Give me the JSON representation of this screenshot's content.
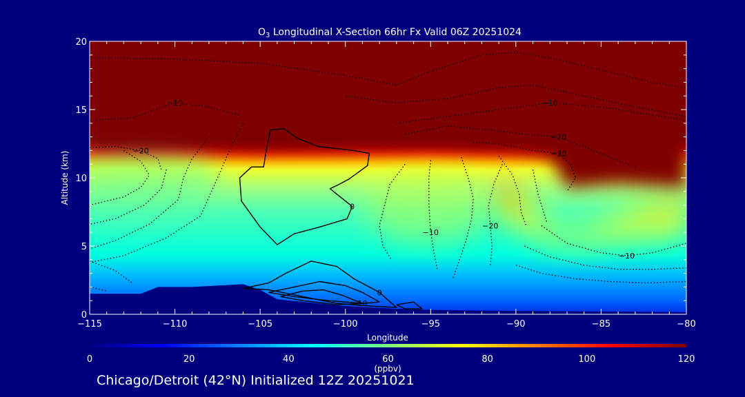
{
  "chart_data": {
    "type": "heatmap",
    "title": {
      "base": "O",
      "sub": "3",
      "rest": " Longitudinal X-Section 66hr  Fx Valid 06Z 20251024"
    },
    "xlabel": "Longitude",
    "ylabel": "Altitude (km)",
    "xlim": [
      -115,
      -80
    ],
    "ylim": [
      0,
      20
    ],
    "x_ticks": [
      -115,
      -110,
      -105,
      -100,
      -95,
      -90,
      -85,
      -80
    ],
    "x_tick_labels": [
      "−115",
      "−110",
      "−105",
      "−100",
      "−95",
      "−90",
      "−85",
      "−80"
    ],
    "y_ticks": [
      0,
      5,
      10,
      15,
      20
    ],
    "y_tick_labels": [
      "0",
      "5",
      "10",
      "15",
      "20"
    ],
    "colorbar": {
      "label": "(ppbv)",
      "min": 0,
      "max": 120,
      "ticks": [
        0,
        20,
        40,
        60,
        80,
        100,
        120
      ],
      "tick_labels": [
        "0",
        "20",
        "40",
        "60",
        "80",
        "100",
        "120"
      ],
      "colors": [
        "#00007f",
        "#0000ff",
        "#007fff",
        "#00ffff",
        "#7fff7f",
        "#ffff00",
        "#ff7f00",
        "#ff0000",
        "#7f0000"
      ]
    },
    "tropopause": [
      {
        "lon": -115,
        "alt": 12.2
      },
      {
        "lon": -110,
        "alt": 12.2
      },
      {
        "lon": -105,
        "alt": 12.0
      },
      {
        "lon": -100,
        "alt": 12.1
      },
      {
        "lon": -95,
        "alt": 12.2
      },
      {
        "lon": -90,
        "alt": 11.9
      },
      {
        "lon": -88,
        "alt": 11.6
      },
      {
        "lon": -87,
        "alt": 9.3
      },
      {
        "lon": -84,
        "alt": 9.6
      },
      {
        "lon": -80,
        "alt": 9.3
      }
    ],
    "terrain": [
      {
        "lon": -115,
        "alt": 1.5
      },
      {
        "lon": -112,
        "alt": 1.5
      },
      {
        "lon": -111,
        "alt": 2.0
      },
      {
        "lon": -109,
        "alt": 2.0
      },
      {
        "lon": -106,
        "alt": 2.2
      },
      {
        "lon": -105,
        "alt": 1.8
      },
      {
        "lon": -104,
        "alt": 1.1
      },
      {
        "lon": -100,
        "alt": 0.6
      },
      {
        "lon": -97,
        "alt": 0.4
      },
      {
        "lon": -94,
        "alt": 0.3
      },
      {
        "lon": -90,
        "alt": 0.25
      },
      {
        "lon": -85,
        "alt": 0.2
      },
      {
        "lon": -80,
        "alt": 0.15
      }
    ],
    "solid_contours": [
      {
        "label": "0",
        "points": [
          [
            -104.4,
            13.5
          ],
          [
            -103.6,
            13.6
          ],
          [
            -102.8,
            12.9
          ],
          [
            -101.6,
            12.3
          ],
          [
            -99.5,
            12.0
          ],
          [
            -98.6,
            11.8
          ],
          [
            -98.7,
            10.9
          ],
          [
            -99.8,
            9.9
          ],
          [
            -100.4,
            9.5
          ],
          [
            -100.9,
            9.2
          ],
          [
            -100.3,
            8.6
          ],
          [
            -99.6,
            7.9
          ],
          [
            -99.9,
            7.0
          ],
          [
            -101.5,
            6.4
          ],
          [
            -103.0,
            5.9
          ],
          [
            -104.0,
            5.1
          ],
          [
            -105.0,
            6.4
          ],
          [
            -106.1,
            8.3
          ],
          [
            -106.2,
            10.0
          ],
          [
            -105.5,
            10.8
          ],
          [
            -104.8,
            10.8
          ],
          [
            -104.6,
            12.3
          ],
          [
            -104.4,
            13.5
          ]
        ]
      },
      {
        "label": "0",
        "points": [
          [
            -106.0,
            1.9
          ],
          [
            -104.5,
            2.3
          ],
          [
            -103.5,
            3.0
          ],
          [
            -102.0,
            3.9
          ],
          [
            -100.5,
            3.5
          ],
          [
            -99.5,
            2.6
          ],
          [
            -98.0,
            1.6
          ],
          [
            -97.0,
            0.5
          ],
          [
            -98.5,
            0.6
          ],
          [
            -100.5,
            0.8
          ],
          [
            -102.5,
            1.3
          ],
          [
            -104.5,
            1.8
          ],
          [
            -106.0,
            1.9
          ]
        ]
      },
      {
        "label": "",
        "points": [
          [
            -104.5,
            1.6
          ],
          [
            -103.0,
            2.0
          ],
          [
            -101.5,
            2.4
          ],
          [
            -100.0,
            2.1
          ],
          [
            -99.0,
            1.6
          ],
          [
            -98.0,
            0.9
          ],
          [
            -99.0,
            0.8
          ],
          [
            -101.0,
            1.0
          ],
          [
            -103.0,
            1.3
          ],
          [
            -104.5,
            1.6
          ]
        ]
      },
      {
        "label": "10",
        "points": [
          [
            -103.8,
            1.3
          ],
          [
            -102.5,
            1.7
          ],
          [
            -101.3,
            1.8
          ],
          [
            -100.2,
            1.4
          ],
          [
            -99.0,
            0.8
          ],
          [
            -100.5,
            0.7
          ],
          [
            -102.5,
            1.0
          ],
          [
            -103.8,
            1.3
          ]
        ]
      },
      {
        "label": "",
        "points": [
          [
            -97.0,
            0.7
          ],
          [
            -96.5,
            0.4
          ],
          [
            -95.5,
            0.4
          ],
          [
            -96.0,
            0.9
          ],
          [
            -97.0,
            0.7
          ]
        ]
      }
    ],
    "dotted_contours": [
      {
        "label": "−10",
        "points": [
          [
            -115,
            14.2
          ],
          [
            -112.5,
            14.4
          ],
          [
            -110,
            15.5
          ],
          [
            -108,
            15.2
          ],
          [
            -106,
            14.5
          ]
        ]
      },
      {
        "label": "−20",
        "points": [
          [
            -115,
            12.2
          ],
          [
            -113.5,
            12.3
          ],
          [
            -112,
            12.0
          ],
          [
            -111,
            11.4
          ],
          [
            -110.8,
            10.6
          ]
        ]
      },
      {
        "label": "",
        "points": [
          [
            -113,
            12.0
          ],
          [
            -112,
            11.2
          ],
          [
            -111.5,
            10.2
          ],
          [
            -112,
            9.3
          ],
          [
            -113,
            8.6
          ],
          [
            -115,
            8.0
          ]
        ]
      },
      {
        "label": "",
        "points": [
          [
            -110.5,
            10.6
          ],
          [
            -110.8,
            9.2
          ],
          [
            -111.8,
            8.0
          ],
          [
            -113.5,
            7.0
          ],
          [
            -115,
            6.6
          ]
        ]
      },
      {
        "label": "",
        "points": [
          [
            -108,
            13.0
          ],
          [
            -109,
            11.4
          ],
          [
            -109.5,
            10.0
          ],
          [
            -109.8,
            8.4
          ],
          [
            -111.5,
            6.6
          ],
          [
            -113.5,
            5.4
          ],
          [
            -115,
            4.8
          ]
        ]
      },
      {
        "label": "",
        "points": [
          [
            -106,
            14.0
          ],
          [
            -106.8,
            12.0
          ],
          [
            -107.5,
            10.0
          ],
          [
            -108.5,
            7.2
          ],
          [
            -110.5,
            5.6
          ],
          [
            -113,
            4.3
          ],
          [
            -115,
            3.8
          ]
        ]
      },
      {
        "label": "",
        "points": [
          [
            -115,
            18.8
          ],
          [
            -110,
            18.7
          ],
          [
            -105,
            18.4
          ],
          [
            -100,
            17.5
          ],
          [
            -97,
            16.8
          ],
          [
            -95,
            17.8
          ],
          [
            -92,
            19.0
          ],
          [
            -90,
            19.2
          ],
          [
            -88,
            18.8
          ],
          [
            -86,
            18.2
          ],
          [
            -84,
            17.6
          ],
          [
            -82,
            17.0
          ],
          [
            -80,
            16.6
          ]
        ]
      },
      {
        "label": "",
        "points": [
          [
            -100,
            16.0
          ],
          [
            -97,
            15.5
          ],
          [
            -94,
            15.8
          ],
          [
            -91,
            16.6
          ],
          [
            -89,
            16.8
          ],
          [
            -86,
            16.0
          ],
          [
            -83,
            15.2
          ],
          [
            -80,
            14.5
          ]
        ]
      },
      {
        "label": "−10",
        "points": [
          [
            -97,
            14.0
          ],
          [
            -94,
            14.5
          ],
          [
            -91,
            15.0
          ],
          [
            -88,
            15.5
          ],
          [
            -85,
            15.2
          ],
          [
            -82,
            14.6
          ],
          [
            -80,
            14.2
          ]
        ]
      },
      {
        "label": "−20",
        "points": [
          [
            -96.5,
            13.2
          ],
          [
            -94,
            13.8
          ],
          [
            -91.5,
            13.5
          ],
          [
            -89.5,
            13.2
          ],
          [
            -87.5,
            13.0
          ],
          [
            -86,
            12.3
          ],
          [
            -84.5,
            11.5
          ],
          [
            -83,
            10.8
          ]
        ]
      },
      {
        "label": "−30",
        "points": [
          [
            -92.5,
            12.6
          ],
          [
            -91,
            12.5
          ],
          [
            -89,
            12.0
          ],
          [
            -87.5,
            11.8
          ],
          [
            -86.8,
            11.0
          ],
          [
            -86.5,
            10.0
          ],
          [
            -87,
            9.0
          ]
        ]
      },
      {
        "label": "",
        "points": [
          [
            -91,
            11.6
          ],
          [
            -90.2,
            10.2
          ],
          [
            -89.8,
            8.8
          ],
          [
            -89.7,
            7.5
          ],
          [
            -89.4,
            6.5
          ]
        ]
      },
      {
        "label": "",
        "points": [
          [
            -89,
            10.6
          ],
          [
            -88.7,
            8.8
          ],
          [
            -88.4,
            7.6
          ],
          [
            -88.2,
            6.8
          ]
        ]
      },
      {
        "label": "",
        "points": [
          [
            -96.5,
            11.0
          ],
          [
            -97.4,
            9.5
          ],
          [
            -97.7,
            8.0
          ],
          [
            -98.0,
            6.5
          ],
          [
            -97.8,
            5.0
          ],
          [
            -97.3,
            4.0
          ]
        ]
      },
      {
        "label": "−10",
        "points": [
          [
            -95,
            11.3
          ],
          [
            -95.1,
            10.0
          ],
          [
            -95.1,
            8.0
          ],
          [
            -95.0,
            6.0
          ],
          [
            -94.8,
            4.5
          ],
          [
            -94.6,
            3.2
          ]
        ]
      },
      {
        "label": "",
        "points": [
          [
            -93.2,
            11.5
          ],
          [
            -92.8,
            10.0
          ],
          [
            -92.5,
            8.5
          ],
          [
            -92.6,
            7.0
          ],
          [
            -92.9,
            5.5
          ],
          [
            -93.3,
            4.0
          ],
          [
            -93.7,
            2.6
          ]
        ]
      },
      {
        "label": "−20",
        "points": [
          [
            -90.8,
            11.0
          ],
          [
            -91.3,
            9.5
          ],
          [
            -91.6,
            8.0
          ],
          [
            -91.5,
            6.5
          ],
          [
            -91.4,
            5.0
          ],
          [
            -91.5,
            3.5
          ]
        ]
      },
      {
        "label": "−10",
        "points": [
          [
            -88.5,
            6.5
          ],
          [
            -87,
            5.2
          ],
          [
            -85,
            4.5
          ],
          [
            -83.5,
            4.3
          ],
          [
            -82,
            4.5
          ],
          [
            -80,
            5.2
          ]
        ]
      },
      {
        "label": "",
        "points": [
          [
            -89.5,
            5.0
          ],
          [
            -88,
            4.2
          ],
          [
            -86,
            3.6
          ],
          [
            -84,
            3.3
          ],
          [
            -82,
            3.3
          ],
          [
            -80,
            3.4
          ]
        ]
      },
      {
        "label": "",
        "points": [
          [
            -90,
            3.6
          ],
          [
            -88.5,
            3.0
          ],
          [
            -86.5,
            2.6
          ],
          [
            -84.5,
            2.4
          ],
          [
            -82.5,
            2.3
          ],
          [
            -80,
            2.4
          ]
        ]
      },
      {
        "label": "",
        "points": [
          [
            -115,
            3.9
          ],
          [
            -113.5,
            3.2
          ],
          [
            -112.5,
            2.3
          ]
        ]
      },
      {
        "label": "",
        "points": [
          [
            -115,
            2.0
          ],
          [
            -114,
            1.7
          ]
        ]
      }
    ]
  },
  "caption": "Chicago/Detroit (42°N) Initialized 12Z 20251021"
}
